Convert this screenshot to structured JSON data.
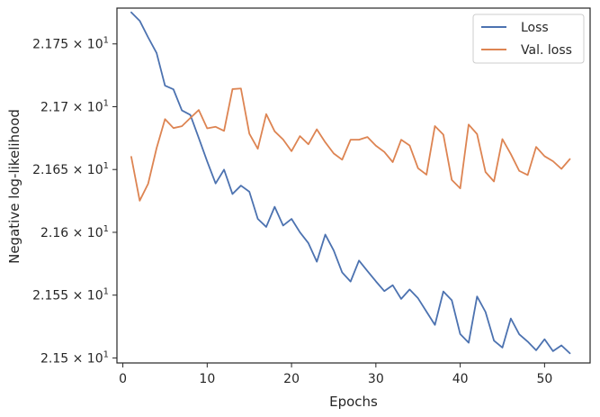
{
  "chart_data": {
    "type": "line",
    "xlabel": "Epochs",
    "ylabel": "Negative log-likelihood",
    "xlim": [
      -0.7,
      55.4
    ],
    "ylim": [
      21.496,
      21.7785
    ],
    "x_ticks": [
      0,
      10,
      20,
      30,
      40,
      50
    ],
    "x_tick_labels": [
      "0",
      "10",
      "20",
      "30",
      "40",
      "50"
    ],
    "y_ticks": [
      21.5,
      21.55,
      21.6,
      21.65,
      21.7,
      21.75
    ],
    "y_tick_labels": [
      {
        "mantissa": "2.15",
        "exponent": "1"
      },
      {
        "mantissa": "2.155",
        "exponent": "1"
      },
      {
        "mantissa": "2.16",
        "exponent": "1"
      },
      {
        "mantissa": "2.165",
        "exponent": "1"
      },
      {
        "mantissa": "2.17",
        "exponent": "1"
      },
      {
        "mantissa": "2.175",
        "exponent": "1"
      }
    ],
    "y_tick_base": "10",
    "y_tick_times": "×",
    "grid": false,
    "legend_position": "top-right",
    "series": [
      {
        "name": "Loss",
        "color": "#4c72b0",
        "x": [
          1,
          2,
          3,
          4,
          5,
          6,
          7,
          8,
          9,
          10,
          11,
          12,
          13,
          14,
          15,
          16,
          17,
          18,
          19,
          20,
          21,
          22,
          23,
          24,
          25,
          26,
          27,
          28,
          29,
          30,
          31,
          32,
          33,
          34,
          35,
          36,
          37,
          38,
          39,
          40,
          41,
          42,
          43,
          44,
          45,
          46,
          47,
          48,
          49,
          50,
          51,
          52,
          53
        ],
        "values": [
          21.7751,
          21.7684,
          21.7552,
          21.7428,
          21.7168,
          21.7138,
          21.6971,
          21.6935,
          21.6751,
          21.6565,
          21.6389,
          21.6499,
          21.6305,
          21.6372,
          21.6323,
          21.6107,
          21.6043,
          21.6203,
          21.6054,
          21.6107,
          21.6,
          21.5914,
          21.5766,
          21.5982,
          21.5856,
          21.5681,
          21.5608,
          21.5775,
          21.5692,
          21.561,
          21.5532,
          21.5579,
          21.547,
          21.5545,
          21.5475,
          21.5369,
          21.5263,
          21.5529,
          21.5459,
          21.519,
          21.5121,
          21.5489,
          21.5366,
          21.5138,
          21.5082,
          21.5314,
          21.5188,
          21.513,
          21.5061,
          21.5149,
          21.5054,
          21.51,
          21.5037
        ]
      },
      {
        "name": "Val. loss",
        "color": "#dd8452",
        "x": [
          1,
          2,
          3,
          4,
          5,
          6,
          7,
          8,
          9,
          10,
          11,
          12,
          13,
          14,
          15,
          16,
          17,
          18,
          19,
          20,
          21,
          22,
          23,
          24,
          25,
          26,
          27,
          28,
          29,
          30,
          31,
          32,
          33,
          34,
          35,
          36,
          37,
          38,
          39,
          40,
          41,
          42,
          43,
          44,
          45,
          46,
          47,
          48,
          49,
          50,
          51,
          52,
          53
        ],
        "values": [
          21.6601,
          21.6252,
          21.6387,
          21.667,
          21.6901,
          21.683,
          21.6845,
          21.691,
          21.6974,
          21.6828,
          21.684,
          21.6808,
          21.714,
          21.7145,
          21.6785,
          21.6665,
          21.6941,
          21.6804,
          21.6739,
          21.6646,
          21.6766,
          21.6701,
          21.682,
          21.6717,
          21.6628,
          21.6578,
          21.6737,
          21.6737,
          21.6759,
          21.669,
          21.664,
          21.6559,
          21.6737,
          21.6692,
          21.651,
          21.6459,
          21.6846,
          21.6778,
          21.6417,
          21.635,
          21.6858,
          21.6782,
          21.648,
          21.6405,
          21.6742,
          21.6623,
          21.6489,
          21.6456,
          21.668,
          21.6606,
          21.6566,
          21.6505,
          21.6583
        ]
      }
    ]
  }
}
